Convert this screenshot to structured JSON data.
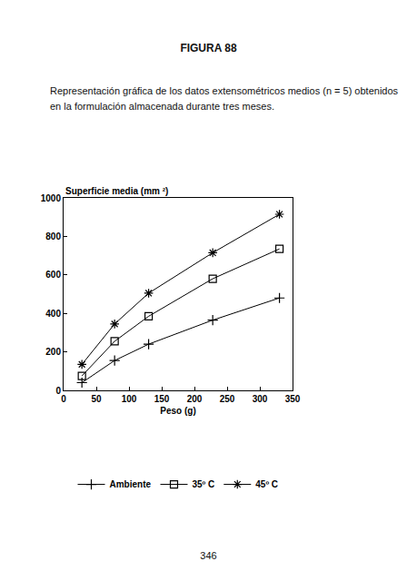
{
  "header": {
    "title": "FIGURA 88",
    "caption": [
      "Representación gráfica de los datos extensométricos medios (n = 5) obtenidos",
      "en la formulación almacenada durante tres meses."
    ]
  },
  "chart_data": {
    "type": "line",
    "ylabel": "Superficie media (mm ²)",
    "xlabel": "Peso (g)",
    "x": [
      28,
      78,
      130,
      228,
      330
    ],
    "series": [
      {
        "name": "Ambiente",
        "color": "#000000",
        "marker": "plus",
        "line_style": "solid",
        "values": [
          40,
          155,
          240,
          365,
          480
        ]
      },
      {
        "name": "35º C",
        "color": "#000000",
        "marker": "square",
        "line_style": "solid",
        "values": [
          75,
          255,
          385,
          580,
          735
        ]
      },
      {
        "name": "45º C",
        "color": "#000000",
        "marker": "asterisk",
        "line_style": "solid",
        "values": [
          135,
          345,
          505,
          715,
          915
        ]
      }
    ],
    "xlim": [
      0,
      350
    ],
    "xticks": [
      0,
      50,
      100,
      150,
      200,
      250,
      300,
      350
    ],
    "ylim": [
      0,
      1000
    ],
    "yticks": [
      0,
      200,
      400,
      600,
      800,
      1000
    ],
    "grid": false,
    "legend": "bottom"
  },
  "footer": {
    "page_number": "346"
  }
}
